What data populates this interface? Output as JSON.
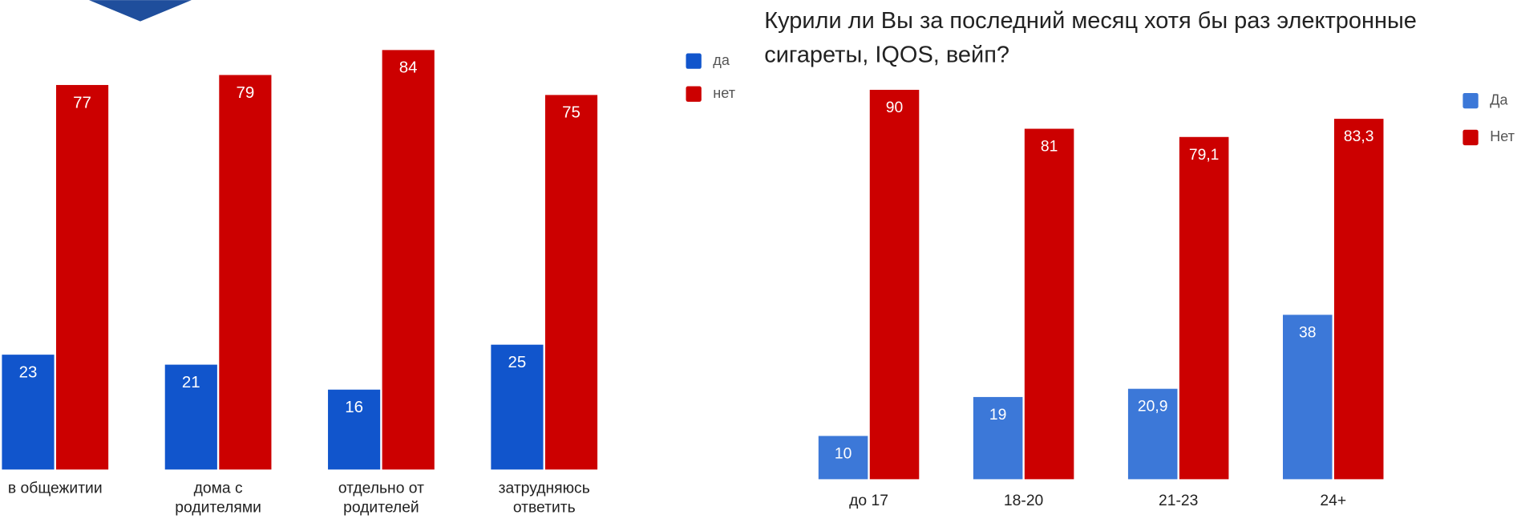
{
  "chart_data": [
    {
      "type": "bar",
      "categories": [
        "в общежитии",
        "дома с родителями",
        "отдельно от родителей",
        "затрудняюсь ответить"
      ],
      "series": [
        {
          "name": "да",
          "color": "#1155cc",
          "values": [
            23,
            21,
            16,
            25
          ]
        },
        {
          "name": "нет",
          "color": "#cc0000",
          "values": [
            77,
            79,
            84,
            75
          ]
        }
      ],
      "ylim": [
        0,
        94
      ],
      "legend": "right"
    },
    {
      "type": "bar",
      "title": "Курили ли Вы за последний месяц хотя бы раз электронные сигареты, IQOS, вейп?",
      "categories": [
        "до 17",
        "18-20",
        "21-23",
        "24+"
      ],
      "series": [
        {
          "name": "Да",
          "color": "#3c78d8",
          "values": [
            10,
            19,
            20.9,
            38
          ],
          "value_labels": [
            "10",
            "19",
            "20,9",
            "38"
          ]
        },
        {
          "name": "Нет",
          "color": "#cc0000",
          "values": [
            90,
            81,
            79.1,
            83.3
          ],
          "value_labels": [
            "90",
            "81",
            "79,1",
            "83,3"
          ]
        }
      ],
      "ylim": [
        0,
        100
      ],
      "legend": "right"
    }
  ]
}
